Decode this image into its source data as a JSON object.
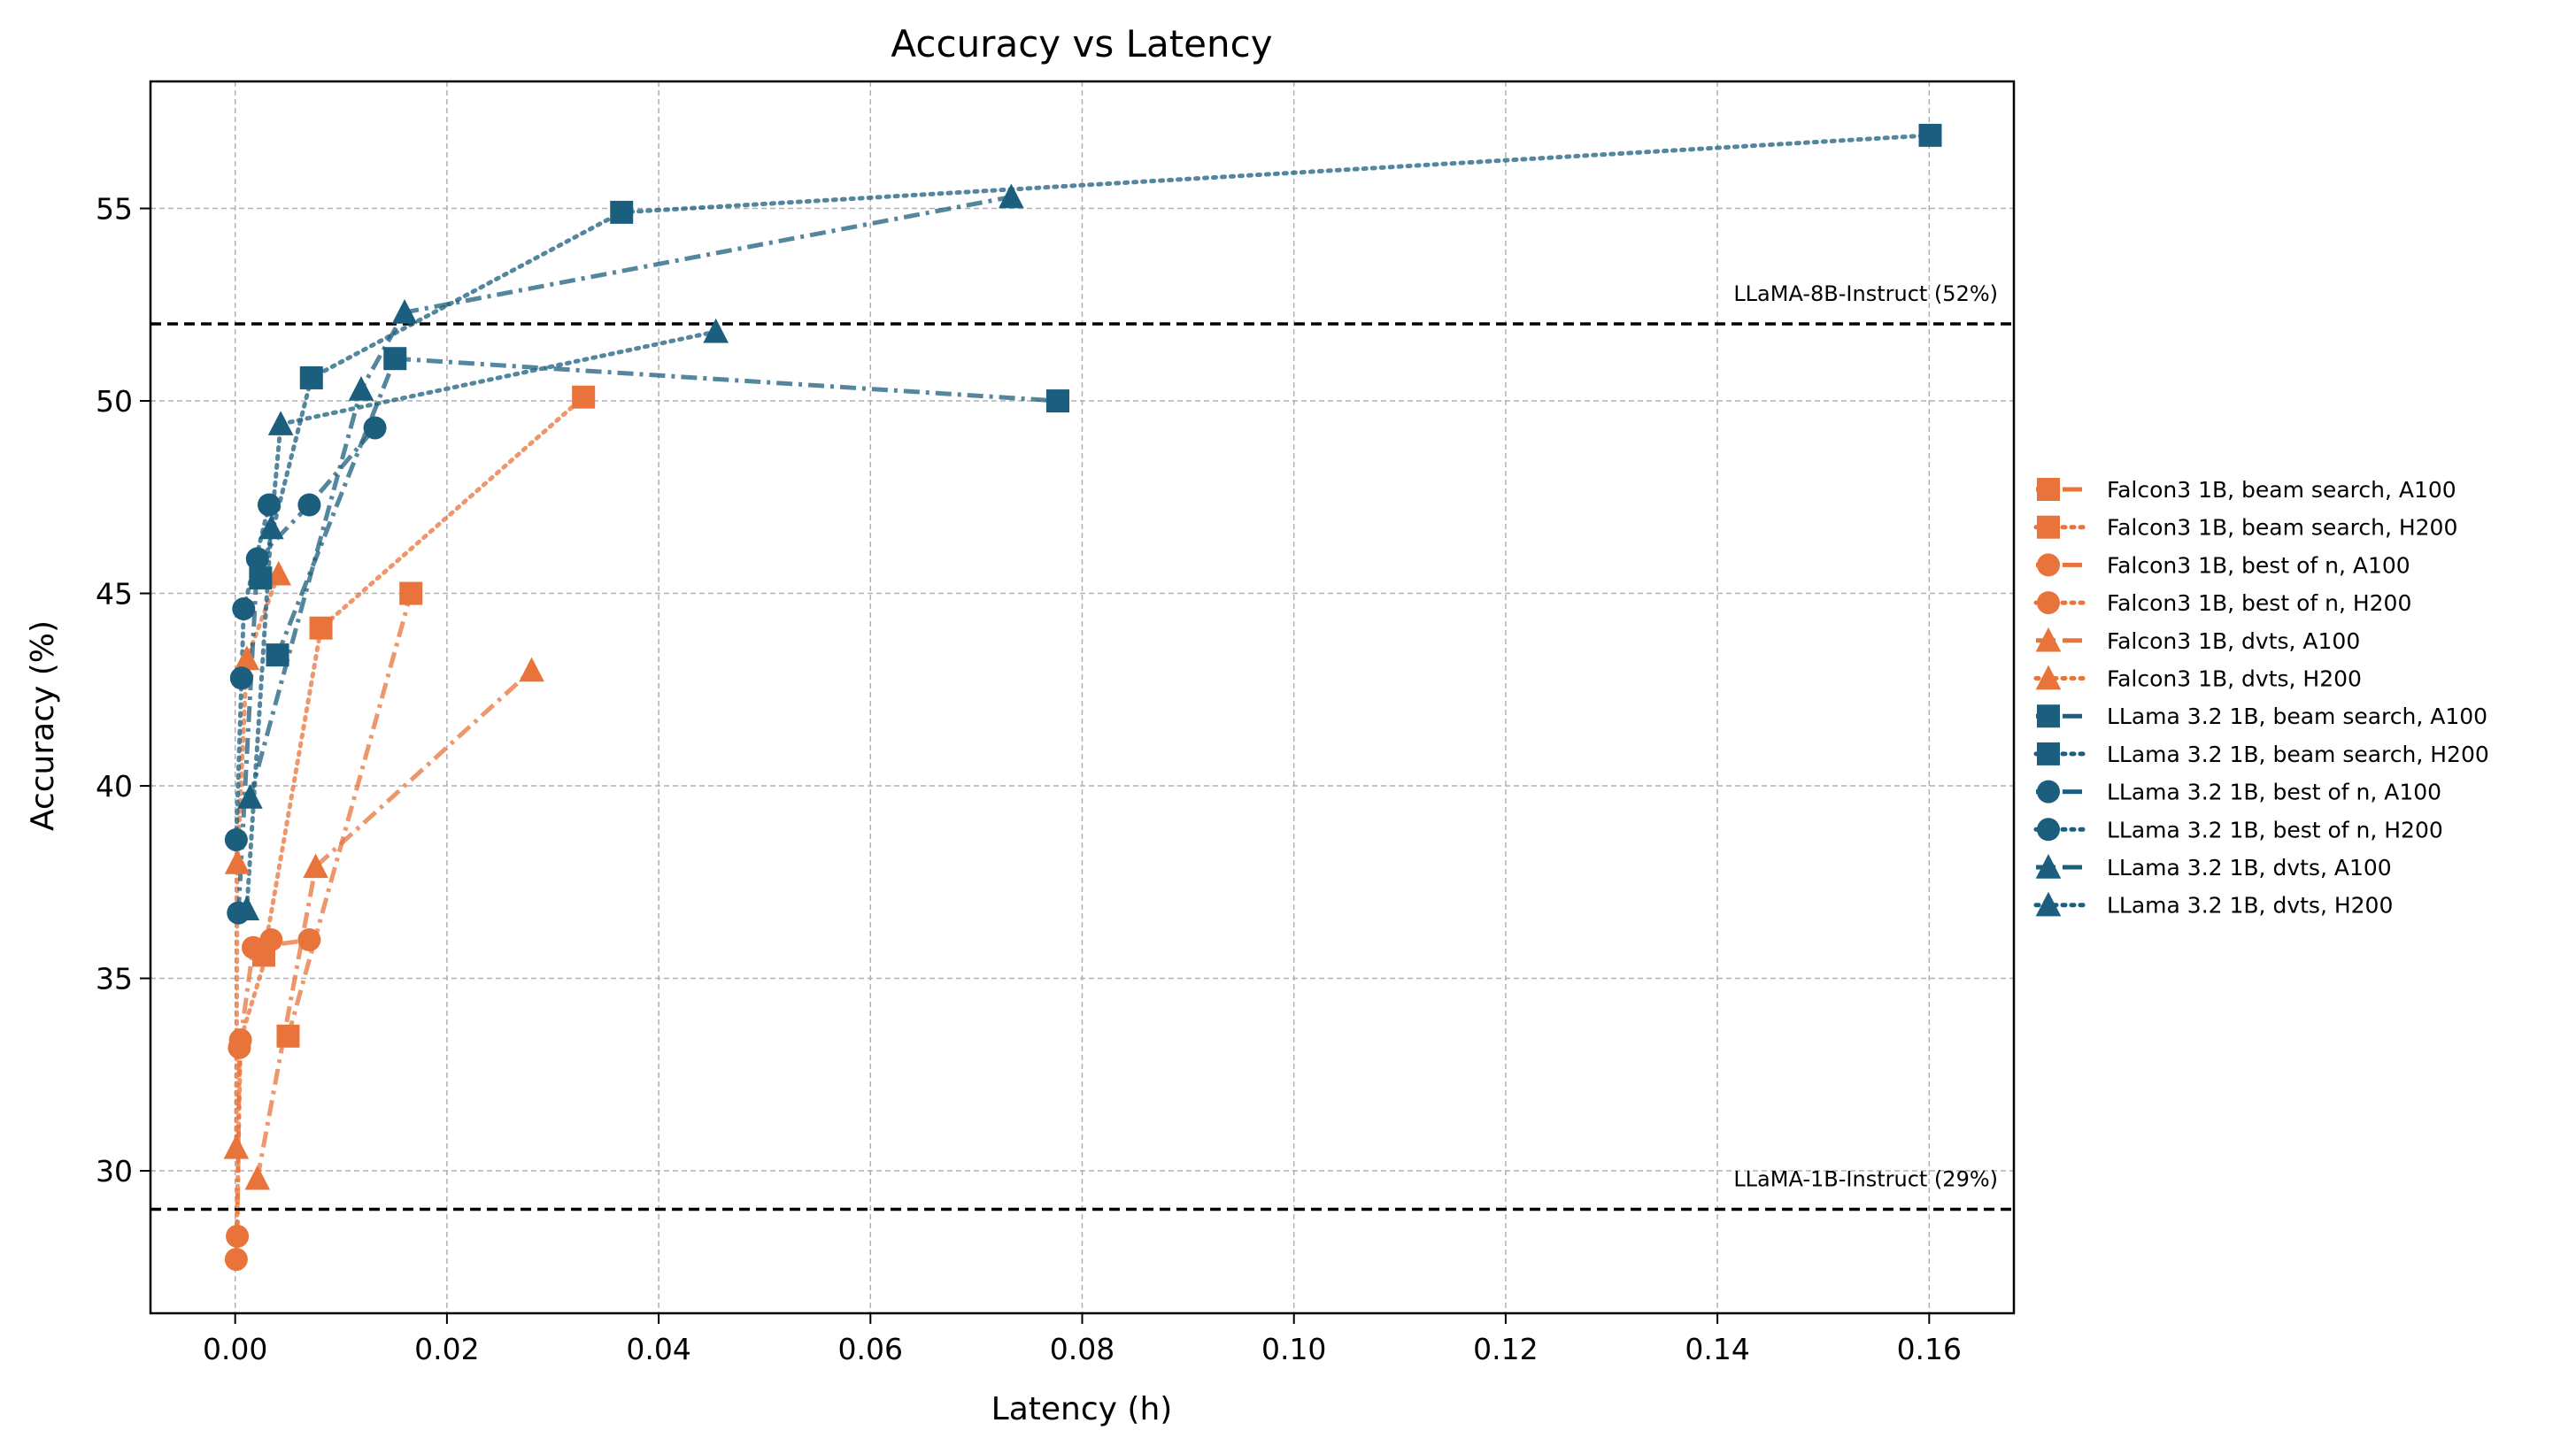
{
  "chart_data": {
    "type": "line",
    "title": "Accuracy vs Latency",
    "xlabel": "Latency (h)",
    "ylabel": "Accuracy (%)",
    "xlim": [
      -0.008,
      0.168
    ],
    "ylim": [
      26.3,
      58.3
    ],
    "xticks": [
      0.0,
      0.02,
      0.04,
      0.06,
      0.08,
      0.1,
      0.12,
      0.14,
      0.16
    ],
    "xtick_labels": [
      "0.00",
      "0.02",
      "0.04",
      "0.06",
      "0.08",
      "0.10",
      "0.12",
      "0.14",
      "0.16"
    ],
    "yticks": [
      30,
      35,
      40,
      45,
      50,
      55
    ],
    "ytick_labels": [
      "30",
      "35",
      "40",
      "45",
      "50",
      "55"
    ],
    "grid": true,
    "legend_position": "right, outside plot",
    "colors": {
      "falcon": "#E8743B",
      "llama": "#1B5E7E"
    },
    "reference_lines": [
      {
        "label": "LLaMA-8B-Instruct (52%)",
        "y": 52
      },
      {
        "label": "LLaMA-1B-Instruct (29%)",
        "y": 29
      }
    ],
    "series": [
      {
        "name": "Falcon3 1B, beam search, A100",
        "marker": "square",
        "linestyle": "dashdot",
        "color": "#E8743B",
        "x": [
          0.005,
          0.0166
        ],
        "y": [
          33.5,
          45.0
        ]
      },
      {
        "name": "Falcon3 1B, beam search, H200",
        "marker": "square",
        "linestyle": "dotted",
        "color": "#E8743B",
        "x": [
          0.0027,
          0.0081,
          0.0329
        ],
        "y": [
          35.6,
          44.1,
          50.1
        ]
      },
      {
        "name": "Falcon3 1B, best of n, A100",
        "marker": "circle",
        "linestyle": "dashdot",
        "color": "#E8743B",
        "x": [
          0.0002,
          0.0004,
          0.0017,
          0.007
        ],
        "y": [
          28.3,
          33.2,
          35.8,
          36.0
        ]
      },
      {
        "name": "Falcon3 1B, best of n, H200",
        "marker": "circle",
        "linestyle": "dotted",
        "color": "#E8743B",
        "x": [
          0.0001,
          0.0005,
          0.0034
        ],
        "y": [
          27.7,
          33.4,
          36.0
        ]
      },
      {
        "name": "Falcon3 1B, dvts, A100",
        "marker": "triangle",
        "linestyle": "dashdot",
        "color": "#E8743B",
        "x": [
          0.0021,
          0.0076,
          0.028
        ],
        "y": [
          29.8,
          37.9,
          43.0
        ]
      },
      {
        "name": "Falcon3 1B, dvts, H200",
        "marker": "triangle",
        "linestyle": "dotted",
        "color": "#E8743B",
        "x": [
          0.0001,
          0.0002,
          0.0011,
          0.0041
        ],
        "y": [
          30.6,
          38.0,
          43.3,
          45.5
        ]
      },
      {
        "name": "LLama 3.2 1B, beam search, A100",
        "marker": "square",
        "linestyle": "dashdot",
        "color": "#1B5E7E",
        "x": [
          0.004,
          0.0151,
          0.0777
        ],
        "y": [
          43.4,
          51.1,
          50.0
        ]
      },
      {
        "name": "LLama 3.2 1B, beam search, H200",
        "marker": "square",
        "linestyle": "dotted",
        "color": "#1B5E7E",
        "x": [
          0.0024,
          0.0072,
          0.0365,
          0.1601
        ],
        "y": [
          45.4,
          50.6,
          54.9,
          56.9
        ]
      },
      {
        "name": "LLama 3.2 1B, best of n, A100",
        "marker": "circle",
        "linestyle": "dashdot",
        "color": "#1B5E7E",
        "x": [
          0.0003,
          0.0021,
          0.007,
          0.0132
        ],
        "y": [
          36.7,
          45.9,
          47.3,
          49.3
        ]
      },
      {
        "name": "LLama 3.2 1B, best of n, H200",
        "marker": "circle",
        "linestyle": "dotted",
        "color": "#1B5E7E",
        "x": [
          0.0001,
          0.0006,
          0.0008,
          0.0032
        ],
        "y": [
          38.6,
          42.8,
          44.6,
          47.3
        ]
      },
      {
        "name": "LLama 3.2 1B, dvts, A100",
        "marker": "triangle",
        "linestyle": "dashdot",
        "color": "#1B5E7E",
        "x": [
          0.0014,
          0.0119,
          0.016,
          0.0733
        ],
        "y": [
          39.7,
          50.3,
          52.3,
          55.3
        ]
      },
      {
        "name": "LLama 3.2 1B, dvts, H200",
        "marker": "triangle",
        "linestyle": "dotted",
        "color": "#1B5E7E",
        "x": [
          0.0011,
          0.0034,
          0.0043,
          0.0454
        ],
        "y": [
          36.8,
          46.7,
          49.4,
          51.8
        ]
      }
    ]
  }
}
